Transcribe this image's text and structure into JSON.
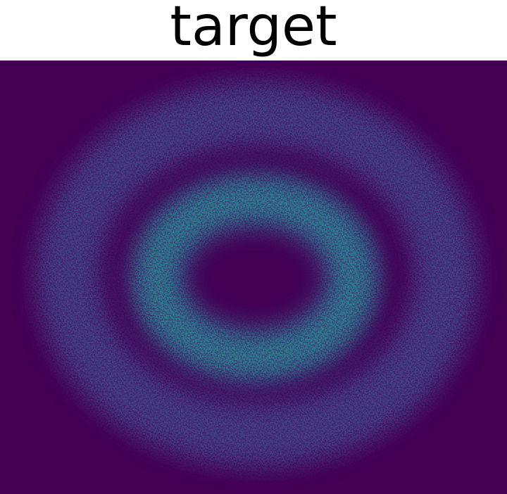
{
  "chart_data": {
    "type": "hist2d",
    "title": "target"
  }
}
